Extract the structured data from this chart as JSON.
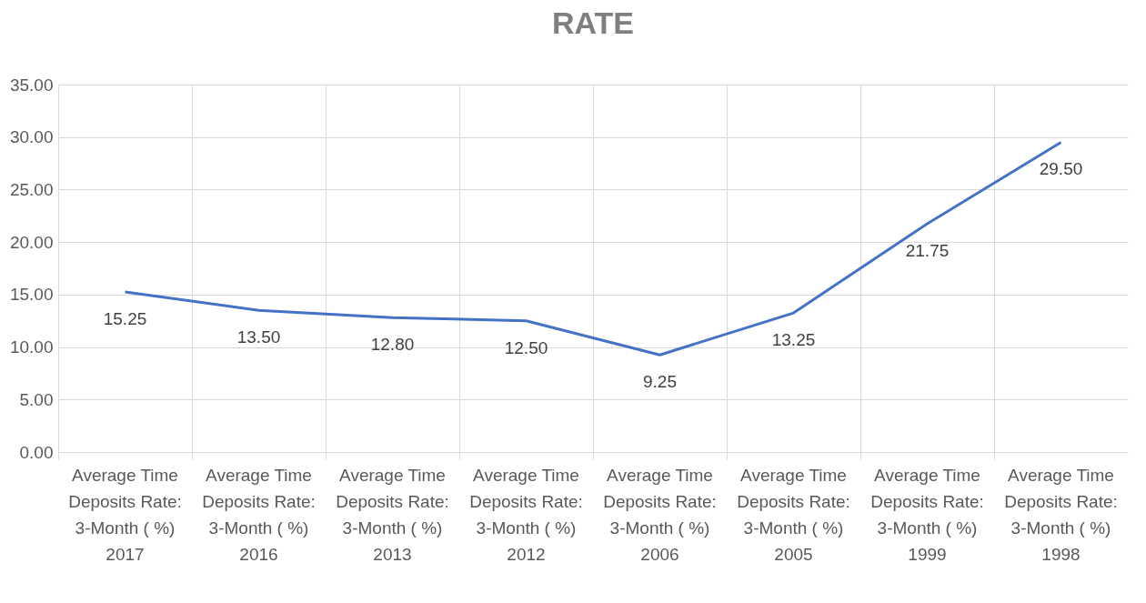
{
  "chart_data": {
    "type": "line",
    "title": "RATE",
    "categories": [
      "Average Time\nDeposits Rate:\n3-Month ( %)\n\n2017",
      "Average Time\nDeposits Rate:\n3-Month ( %)\n\n2016",
      "Average Time\nDeposits Rate:\n3-Month ( %)\n\n2013",
      "Average Time\nDeposits Rate:\n3-Month ( %)\n\n2012",
      "Average Time\nDeposits Rate:\n3-Month ( %)\n\n2006",
      "Average Time\nDeposits Rate:\n3-Month ( %)\n\n2005",
      "Average Time\nDeposits Rate:\n3-Month ( %)\n\n1999",
      "Average Time\nDeposits Rate:\n3-Month ( %)\n\n1998"
    ],
    "series": [
      {
        "color": "#4472c4",
        "values": [
          15.25,
          13.5,
          12.8,
          12.5,
          9.25,
          13.25,
          21.75,
          29.5
        ],
        "value_labels": [
          "15.25",
          "13.50",
          "12.80",
          "12.50",
          "9.25",
          "13.25",
          "21.75",
          "29.50"
        ]
      }
    ],
    "ylim": [
      0,
      35
    ],
    "yticks": [
      {
        "value": 0,
        "label": "0.00"
      },
      {
        "value": 5,
        "label": "5.00"
      },
      {
        "value": 10,
        "label": "10.00"
      },
      {
        "value": 15,
        "label": "15.00"
      },
      {
        "value": 20,
        "label": "20.00"
      },
      {
        "value": 25,
        "label": "25.00"
      },
      {
        "value": 30,
        "label": "30.00"
      },
      {
        "value": 35,
        "label": "35.00"
      }
    ],
    "grid": true,
    "marker": "none",
    "line_style": "solid"
  }
}
